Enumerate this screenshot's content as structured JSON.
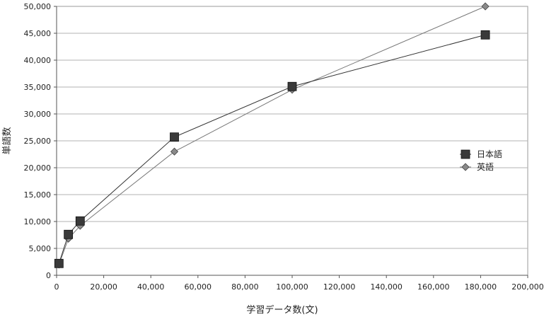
{
  "chart_data": {
    "type": "line",
    "title": "",
    "xlabel": "学習データ数(文)",
    "ylabel": "単語数",
    "xlim": [
      0,
      200000
    ],
    "ylim": [
      0,
      50000
    ],
    "x_ticks": [
      0,
      20000,
      40000,
      60000,
      80000,
      100000,
      120000,
      140000,
      160000,
      180000,
      200000
    ],
    "y_ticks": [
      0,
      5000,
      10000,
      15000,
      20000,
      25000,
      30000,
      35000,
      40000,
      45000,
      50000
    ],
    "grid": {
      "horizontal": true,
      "vertical": false
    },
    "legend_position": "right",
    "series": [
      {
        "name": "日本語",
        "marker": "square",
        "color": "#3a3a3a",
        "line_color": "#333333",
        "points": [
          {
            "x": 1000,
            "y": 2200
          },
          {
            "x": 5000,
            "y": 7600
          },
          {
            "x": 10000,
            "y": 10100
          },
          {
            "x": 50000,
            "y": 25700
          },
          {
            "x": 100000,
            "y": 35100
          },
          {
            "x": 182000,
            "y": 44700
          }
        ]
      },
      {
        "name": "英語",
        "marker": "diamond",
        "color": "#8a8a8a",
        "line_color": "#777777",
        "points": [
          {
            "x": 1000,
            "y": 2000
          },
          {
            "x": 5000,
            "y": 6800
          },
          {
            "x": 10000,
            "y": 9200
          },
          {
            "x": 50000,
            "y": 23000
          },
          {
            "x": 100000,
            "y": 34500
          },
          {
            "x": 182000,
            "y": 50000
          }
        ]
      }
    ]
  }
}
